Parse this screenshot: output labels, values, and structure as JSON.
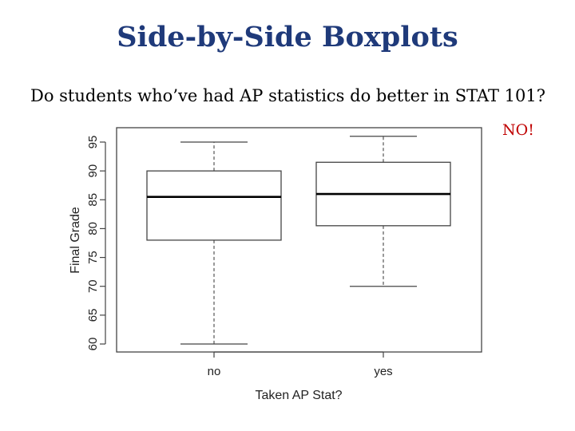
{
  "slide": {
    "title": "Side-by-Side Boxplots",
    "subtitle": "Do students who’ve had AP statistics do better in STAT 101?",
    "answer": "NO!",
    "answer_color": "#c00000",
    "title_color": "#1f3a7a"
  },
  "chart_data": {
    "type": "boxplot",
    "xlabel": "Taken AP Stat?",
    "ylabel": "Final Grade",
    "categories": [
      "no",
      "yes"
    ],
    "ylim": [
      60,
      95
    ],
    "yticks": [
      60,
      65,
      70,
      75,
      80,
      85,
      90,
      95
    ],
    "boxes": [
      {
        "category": "no",
        "min": 60,
        "q1": 78,
        "median": 85.5,
        "q3": 90,
        "max": 95
      },
      {
        "category": "yes",
        "min": 70,
        "q1": 80.5,
        "median": 86,
        "q3": 91.5,
        "max": 96
      }
    ],
    "grid": false
  }
}
